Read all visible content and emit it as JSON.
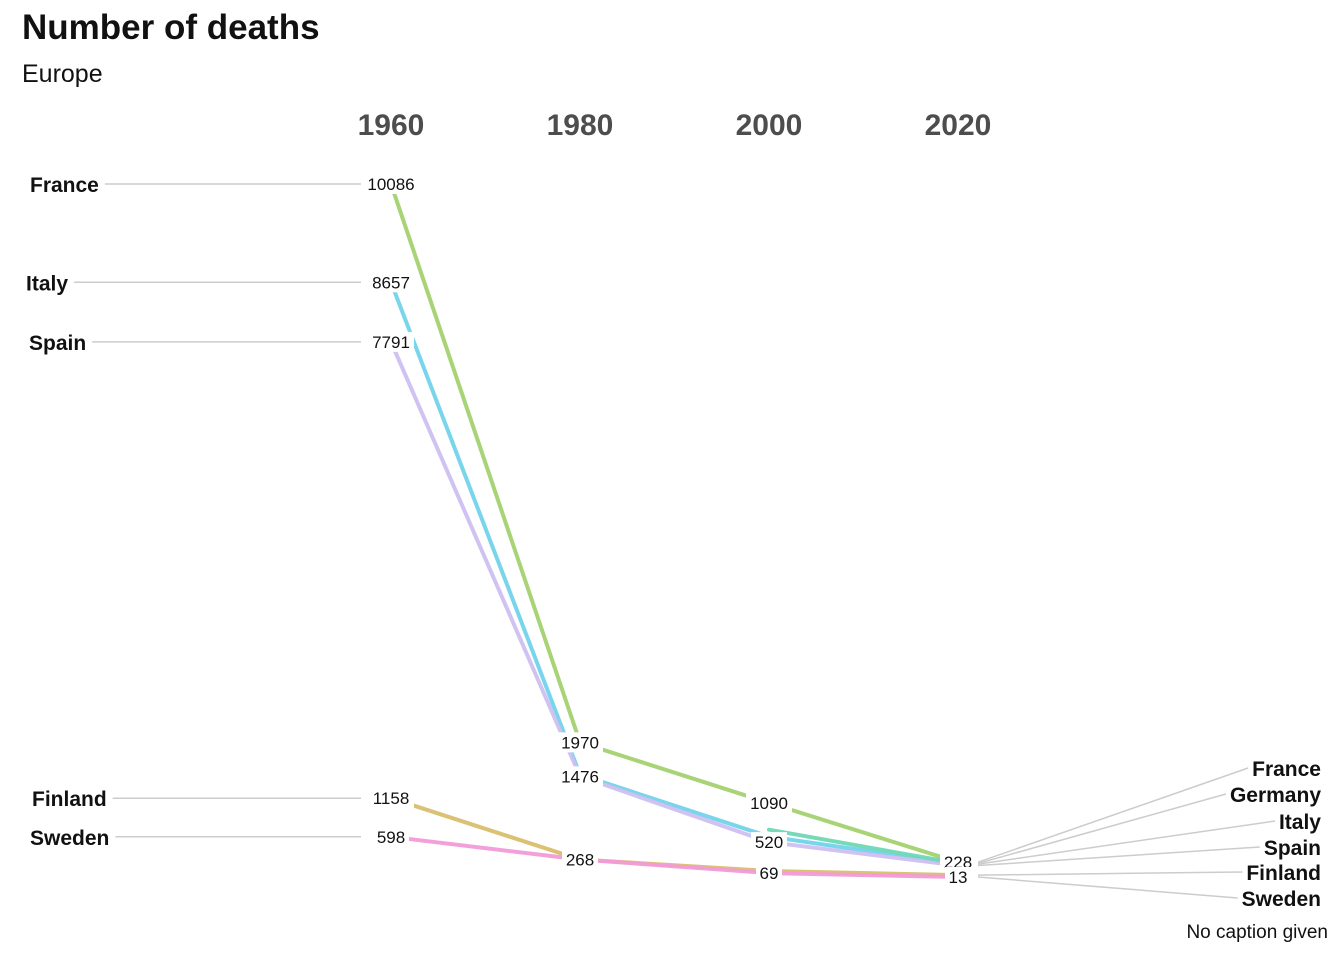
{
  "title": "Number of deaths",
  "subtitle": "Europe",
  "caption": "No caption given",
  "chart_data": {
    "type": "slope",
    "x": [
      "1960",
      "1980",
      "2000",
      "2020"
    ],
    "ylim": [
      0,
      10500
    ],
    "series": [
      {
        "name": "France",
        "color": "#a3d16f",
        "values": [
          10086,
          1970,
          1090,
          228
        ]
      },
      {
        "name": "Italy",
        "color": "#72d3ea",
        "values": [
          8657,
          1500,
          600,
          200
        ]
      },
      {
        "name": "Spain",
        "color": "#cfc0f0",
        "values": [
          7791,
          1476,
          520,
          180
        ]
      },
      {
        "name": "Germany",
        "color": "#6fd8b6",
        "values": [
          null,
          null,
          700,
          210
        ]
      },
      {
        "name": "Finland",
        "color": "#d8be6c",
        "values": [
          1158,
          268,
          100,
          40
        ]
      },
      {
        "name": "Sweden",
        "color": "#f29bd8",
        "values": [
          598,
          268,
          69,
          13
        ]
      }
    ],
    "point_labels": [
      {
        "x": "1960",
        "text": "10086",
        "series": "France"
      },
      {
        "x": "1960",
        "text": "8657",
        "series": "Italy"
      },
      {
        "x": "1960",
        "text": "7791",
        "series": "Spain"
      },
      {
        "x": "1960",
        "text": "1158",
        "series": "Finland"
      },
      {
        "x": "1960",
        "text": "598",
        "series": "Sweden"
      },
      {
        "x": "1980",
        "text": "1970",
        "series": "France"
      },
      {
        "x": "1980",
        "text": "1476",
        "series": "Spain"
      },
      {
        "x": "1980",
        "text": "268",
        "series": "Sweden"
      },
      {
        "x": "2000",
        "text": "1090",
        "series": "France"
      },
      {
        "x": "2000",
        "text": "520",
        "series": "Spain"
      },
      {
        "x": "2000",
        "text": "69",
        "series": "Sweden"
      },
      {
        "x": "2020",
        "text": "228",
        "series": "France"
      },
      {
        "x": "2020",
        "text": "13",
        "series": "Sweden"
      }
    ],
    "left_labels": [
      "France",
      "Italy",
      "Spain",
      "Finland",
      "Sweden"
    ],
    "right_labels": [
      "France",
      "Germany",
      "Italy",
      "Spain",
      "Finland",
      "Sweden"
    ],
    "grid": false,
    "legend": "none"
  }
}
